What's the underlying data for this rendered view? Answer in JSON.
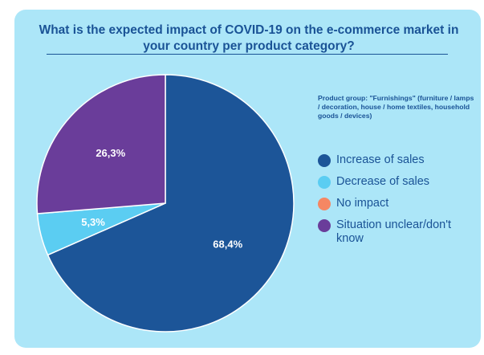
{
  "title": "What is the expected impact of COVID-19 on the e-commerce market in your country per product category?",
  "group_note": "Product group: \"Furnishings\" (furniture / lamps / decoration, house / home textiles, household goods / devices)",
  "colors": {
    "background": "#ace6f8",
    "title": "#1a5396"
  },
  "chart_data": {
    "type": "pie",
    "title": "What is the expected impact of COVID-19 on the e-commerce market in your country per product category?",
    "slices": [
      {
        "label": "Increase of sales",
        "value": 68.4,
        "display": "68,4%",
        "color": "#1c5598"
      },
      {
        "label": "Decrease of sales",
        "value": 5.3,
        "display": "5,3%",
        "color": "#5bcdf2"
      },
      {
        "label": "No impact",
        "value": 0,
        "display": "",
        "color": "#f58763"
      },
      {
        "label": "Situation unclear/don't know",
        "value": 26.3,
        "display": "26,3%",
        "color": "#6a3d9a"
      }
    ],
    "legend_position": "right"
  }
}
